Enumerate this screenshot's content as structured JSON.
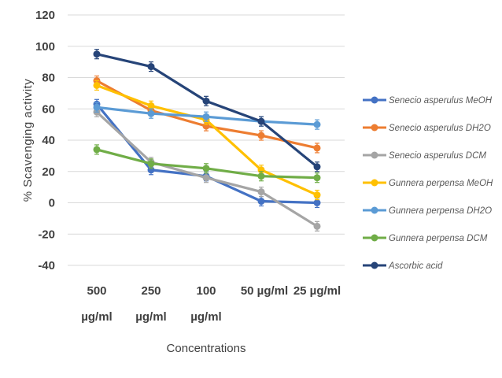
{
  "chart_data": {
    "type": "line",
    "title": "",
    "xlabel": "Concentrations",
    "ylabel": "% Scavenging activity",
    "categories": [
      [
        "500",
        "µg/ml"
      ],
      [
        "250",
        "µg/ml"
      ],
      [
        "100",
        "µg/ml"
      ],
      [
        "50 µg/ml"
      ],
      [
        "25 µg/ml"
      ]
    ],
    "ylim": [
      -40,
      120
    ],
    "yticks": [
      -40,
      -20,
      0,
      20,
      40,
      60,
      80,
      100,
      120
    ],
    "grid": true,
    "legend_position": "right",
    "error_bars": true,
    "series": [
      {
        "name": "Senecio asperulus MeOH",
        "color": "#4472C4",
        "values": [
          63,
          21,
          17,
          1,
          0
        ]
      },
      {
        "name": "Senecio asperulus DH2O",
        "color": "#ED7D31",
        "values": [
          78,
          59,
          49,
          43,
          35
        ]
      },
      {
        "name": "Senecio asperulus DCM",
        "color": "#A5A5A5",
        "values": [
          58,
          26,
          16,
          7,
          -15
        ]
      },
      {
        "name": "Gunnera perpensa  MeOH",
        "color": "#FFC000",
        "values": [
          75,
          62,
          53,
          21,
          5
        ]
      },
      {
        "name": "Gunnera perpensa  DH2O",
        "color": "#5B9BD5",
        "values": [
          61,
          57,
          55,
          52,
          50
        ]
      },
      {
        "name": "Gunnera perpensa  DCM",
        "color": "#70AD47",
        "values": [
          34,
          25,
          22,
          17,
          16
        ]
      },
      {
        "name": "Ascorbic acid",
        "color": "#264478",
        "values": [
          95,
          87,
          65,
          52,
          23
        ]
      }
    ]
  }
}
